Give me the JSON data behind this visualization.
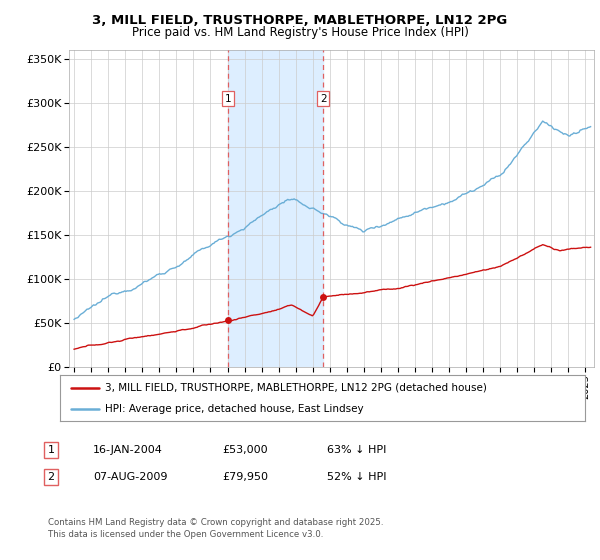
{
  "title_line1": "3, MILL FIELD, TRUSTHORPE, MABLETHORPE, LN12 2PG",
  "title_line2": "Price paid vs. HM Land Registry's House Price Index (HPI)",
  "yticks": [
    0,
    50000,
    100000,
    150000,
    200000,
    250000,
    300000,
    350000
  ],
  "ytick_labels": [
    "£0",
    "£50K",
    "£100K",
    "£150K",
    "£200K",
    "£250K",
    "£300K",
    "£350K"
  ],
  "hpi_color": "#6aaed6",
  "price_color": "#cc1111",
  "sale1_date": 2004.04,
  "sale1_price": 53000,
  "sale2_date": 2009.62,
  "sale2_price": 79950,
  "vline_color": "#e06060",
  "shade_color": "#ddeeff",
  "legend_line1": "3, MILL FIELD, TRUSTHORPE, MABLETHORPE, LN12 2PG (detached house)",
  "legend_line2": "HPI: Average price, detached house, East Lindsey",
  "table_rows": [
    {
      "num": "1",
      "date": "16-JAN-2004",
      "price": "£53,000",
      "pct": "63% ↓ HPI"
    },
    {
      "num": "2",
      "date": "07-AUG-2009",
      "price": "£79,950",
      "pct": "52% ↓ HPI"
    }
  ],
  "footnote": "Contains HM Land Registry data © Crown copyright and database right 2025.\nThis data is licensed under the Open Government Licence v3.0.",
  "xmin": 1994.7,
  "xmax": 2025.5,
  "ymin": 0,
  "ymax": 360000,
  "background_color": "#ffffff",
  "plot_bg_color": "#ffffff"
}
